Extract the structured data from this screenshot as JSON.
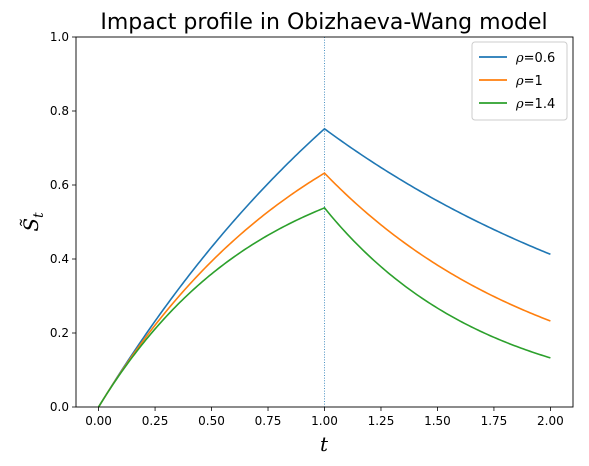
{
  "chart_data": {
    "type": "line",
    "title": "Impact profile in Obizhaeva-Wang model",
    "xlabel": "t",
    "ylabel": "S̃",
    "ylabel_sub": "t",
    "xlim": [
      -0.1,
      2.1
    ],
    "ylim": [
      0,
      1.0
    ],
    "xticks": [
      "0.00",
      "0.25",
      "0.50",
      "0.75",
      "1.00",
      "1.25",
      "1.50",
      "1.75",
      "2.00"
    ],
    "yticks": [
      "0.0",
      "0.2",
      "0.4",
      "0.6",
      "0.8",
      "1.0"
    ],
    "vline_x": 1.0,
    "legend_position": "top-right",
    "series": [
      {
        "name": "=0.6",
        "name_prefix": "ρ",
        "color": "#1f77b4",
        "rho": 0.6,
        "peak": 0.752,
        "end": 0.413
      },
      {
        "name": "=1",
        "name_prefix": "ρ",
        "color": "#ff7f0e",
        "rho": 1.0,
        "peak": 0.632,
        "end": 0.233
      },
      {
        "name": "=1.4",
        "name_prefix": "ρ",
        "color": "#2ca02c",
        "rho": 1.4,
        "peak": 0.538,
        "end": 0.133
      }
    ]
  }
}
